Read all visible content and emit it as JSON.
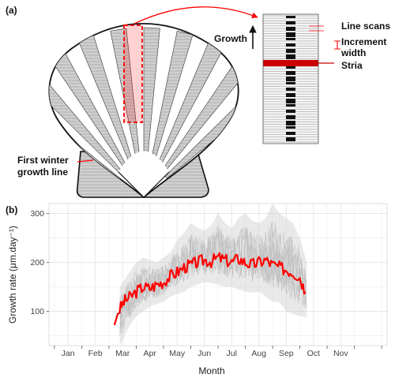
{
  "panel_a": {
    "letter": "(a)",
    "labels": {
      "growth": "Growth",
      "line_scans": "Line scans",
      "increment_width_line1": "Increment",
      "increment_width_line2": "width",
      "stria": "Stria",
      "first_winter_line1": "First winter",
      "first_winter_line2": "growth line"
    },
    "colors": {
      "highlight": "#ff0000",
      "stria": "#cc0000",
      "shell_stroke": "#111111"
    },
    "icons": [
      "scallop-shell-illustration",
      "zoom-arrow-icon",
      "growth-arrow-icon"
    ]
  },
  "panel_b": {
    "letter": "(b)"
  },
  "chart_data": {
    "type": "line",
    "title": "",
    "xlabel": "Month",
    "ylabel": "Growth rate (μm.day⁻¹)",
    "x_categories": [
      "Jan",
      "Feb",
      "Mar",
      "Apr",
      "May",
      "Jun",
      "Jul",
      "Aug",
      "Sep",
      "Oct",
      "Nov"
    ],
    "ylim": [
      30,
      320
    ],
    "yticks": [
      100,
      200,
      300
    ],
    "grid": true,
    "legend": "none",
    "series": [
      {
        "role": "mean",
        "color": "#ff0000",
        "x_month": [
          2.2,
          2.35,
          2.55,
          2.75,
          3.0,
          3.25,
          3.5,
          3.75,
          4.0,
          4.25,
          4.5,
          4.75,
          5.0,
          5.25,
          5.5,
          5.75,
          6.0,
          6.25,
          6.5,
          6.75,
          7.0,
          7.25,
          7.5,
          7.75,
          8.0,
          8.25,
          8.5,
          8.75,
          9.0,
          9.2
        ],
        "y": [
          72,
          100,
          120,
          128,
          140,
          150,
          147,
          155,
          160,
          172,
          180,
          190,
          195,
          200,
          205,
          202,
          210,
          205,
          200,
          208,
          200,
          195,
          200,
          205,
          195,
          190,
          185,
          180,
          170,
          140
        ]
      }
    ],
    "band": {
      "role": "individual traces",
      "color": "#cfcfcf",
      "x_month": [
        2.4,
        2.75,
        3.0,
        3.25,
        3.5,
        3.75,
        4.0,
        4.25,
        4.5,
        4.75,
        5.0,
        5.25,
        5.5,
        5.75,
        6.0,
        6.25,
        6.5,
        6.75,
        7.0,
        7.25,
        7.5,
        7.75,
        8.0,
        8.25,
        8.5,
        8.75,
        9.0,
        9.25
      ],
      "y_low": [
        30,
        70,
        90,
        100,
        110,
        115,
        120,
        130,
        135,
        140,
        150,
        155,
        160,
        158,
        155,
        150,
        150,
        145,
        140,
        138,
        140,
        130,
        120,
        118,
        100,
        95,
        90,
        88
      ],
      "y_high": [
        150,
        180,
        200,
        210,
        205,
        200,
        210,
        220,
        245,
        260,
        280,
        270,
        265,
        275,
        300,
        280,
        270,
        290,
        300,
        285,
        280,
        290,
        320,
        300,
        290,
        280,
        250,
        200
      ]
    }
  }
}
